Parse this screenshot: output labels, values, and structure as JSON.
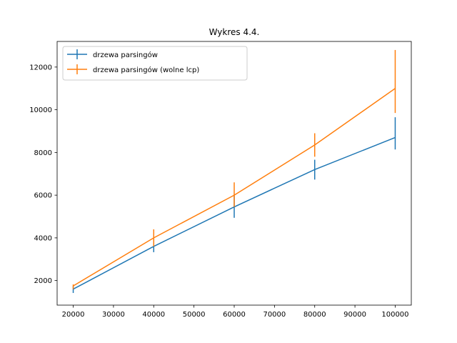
{
  "chart_data": {
    "type": "line",
    "title": "Wykres 4.4.",
    "xlabel": "",
    "ylabel": "",
    "x": [
      20000,
      40000,
      60000,
      80000,
      100000
    ],
    "xlim": [
      16000,
      104000
    ],
    "ylim": [
      850,
      13200
    ],
    "xticks": [
      20000,
      30000,
      40000,
      50000,
      60000,
      70000,
      80000,
      90000,
      100000
    ],
    "yticks": [
      2000,
      4000,
      6000,
      8000,
      10000,
      12000
    ],
    "legend_position": "upper-left",
    "grid": false,
    "series": [
      {
        "name": "drzewa parsingów",
        "color": "#1f77b4",
        "values": [
          1600,
          3600,
          5450,
          7200,
          8700
        ],
        "err_low": [
          1420,
          3330,
          4940,
          6730,
          8140
        ],
        "err_high": [
          1750,
          3950,
          6010,
          7660,
          9650
        ]
      },
      {
        "name": "drzewa parsingów (wolne lcp)",
        "color": "#ff7f0e",
        "values": [
          1750,
          4000,
          6000,
          8350,
          11000
        ],
        "err_low": [
          1600,
          3600,
          5450,
          7800,
          9850
        ],
        "err_high": [
          1820,
          4400,
          6600,
          8900,
          12800
        ]
      }
    ]
  }
}
